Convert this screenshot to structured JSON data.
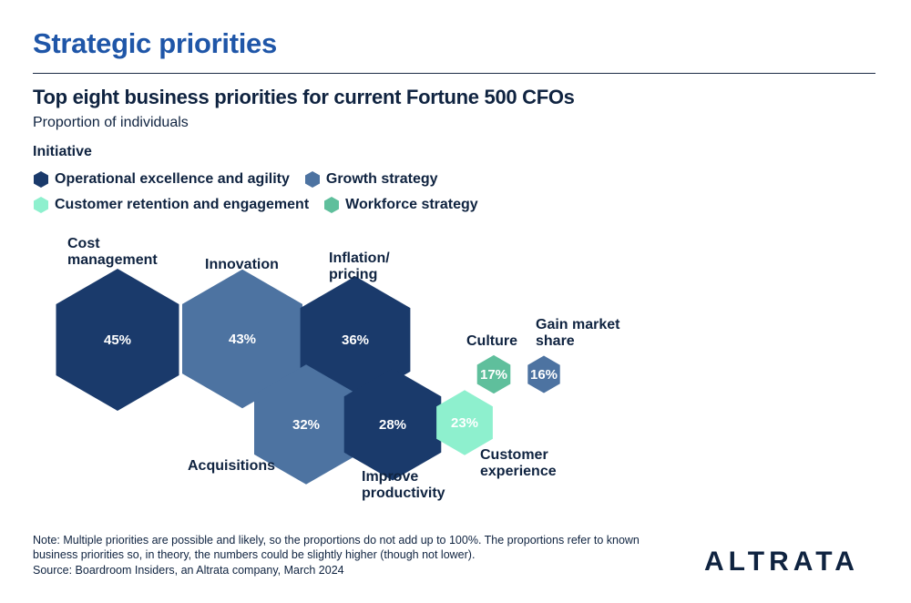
{
  "header": {
    "section_title": "Strategic priorities"
  },
  "chart_data": {
    "type": "hexagon-bubble",
    "title": "Top eight business priorities for current Fortune 500 CFOs",
    "subtitle": "Proportion of individuals",
    "legend_title": "Initiative",
    "legend": [
      {
        "name": "Operational excellence and agility",
        "color": "#1a3a6b"
      },
      {
        "name": "Growth strategy",
        "color": "#4d73a1"
      },
      {
        "name": "Customer retention and engagement",
        "color": "#8ef0ce"
      },
      {
        "name": "Workforce strategy",
        "color": "#5fbf9c"
      }
    ],
    "items": [
      {
        "label": [
          "Cost",
          "management"
        ],
        "value": 45,
        "value_label": "45%",
        "initiative": "Operational excellence and agility"
      },
      {
        "label": [
          "Innovation"
        ],
        "value": 43,
        "value_label": "43%",
        "initiative": "Growth strategy"
      },
      {
        "label": [
          "Inflation/",
          "pricing"
        ],
        "value": 36,
        "value_label": "36%",
        "initiative": "Operational excellence and agility"
      },
      {
        "label": [
          "Acquisitions"
        ],
        "value": 32,
        "value_label": "32%",
        "initiative": "Growth strategy"
      },
      {
        "label": [
          "Improve",
          "productivity"
        ],
        "value": 28,
        "value_label": "28%",
        "initiative": "Operational excellence and agility"
      },
      {
        "label": [
          "Customer",
          "experience"
        ],
        "value": 23,
        "value_label": "23%",
        "initiative": "Customer retention and engagement"
      },
      {
        "label": [
          "Culture"
        ],
        "value": 17,
        "value_label": "17%",
        "initiative": "Workforce strategy"
      },
      {
        "label": [
          "Gain market",
          "share"
        ],
        "value": 16,
        "value_label": "16%",
        "initiative": "Growth strategy"
      }
    ]
  },
  "footer": {
    "note": "Note: Multiple priorities are possible and likely, so the proportions do not add up to 100%. The proportions refer to known business priorities so, in theory, the numbers could be slightly higher (though not lower).",
    "source": "Source: Boardroom Insiders, an Altrata company, March 2024",
    "logo": "ALTRATA"
  }
}
